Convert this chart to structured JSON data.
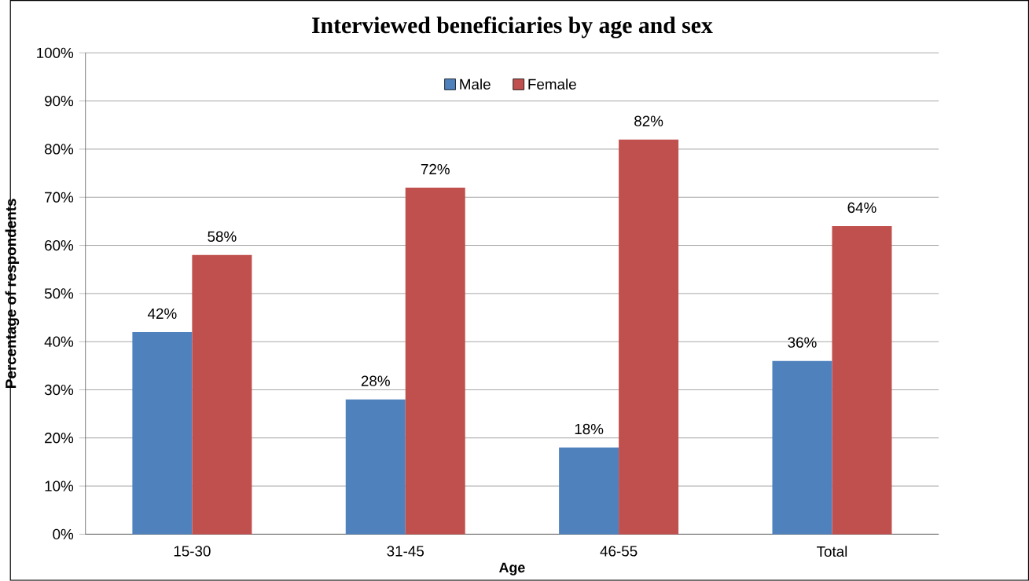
{
  "chart_data": {
    "type": "bar",
    "title": "Interviewed beneficiaries by age and sex",
    "xlabel": "Age",
    "ylabel": "Percentage of respondents",
    "categories": [
      "15-30",
      "31-45",
      "46-55",
      "Total"
    ],
    "series": [
      {
        "name": "Male",
        "color": "#4f81bd",
        "values": [
          42,
          28,
          18,
          36
        ],
        "value_labels": [
          "42%",
          "28%",
          "18%",
          "36%"
        ]
      },
      {
        "name": "Female",
        "color": "#c0504d",
        "values": [
          58,
          72,
          82,
          64
        ],
        "value_labels": [
          "58%",
          "72%",
          "82%",
          "64%"
        ]
      }
    ],
    "ylim": [
      0,
      100
    ],
    "yticks": [
      {
        "value": 0,
        "label": "0%"
      },
      {
        "value": 10,
        "label": "10%"
      },
      {
        "value": 20,
        "label": "20%"
      },
      {
        "value": 30,
        "label": "30%"
      },
      {
        "value": 40,
        "label": "40%"
      },
      {
        "value": 50,
        "label": "50%"
      },
      {
        "value": 60,
        "label": "60%"
      },
      {
        "value": 70,
        "label": "70%"
      },
      {
        "value": 80,
        "label": "80%"
      },
      {
        "value": 90,
        "label": "90%"
      },
      {
        "value": 100,
        "label": "100%"
      }
    ],
    "grid": "y",
    "legend": "top"
  }
}
